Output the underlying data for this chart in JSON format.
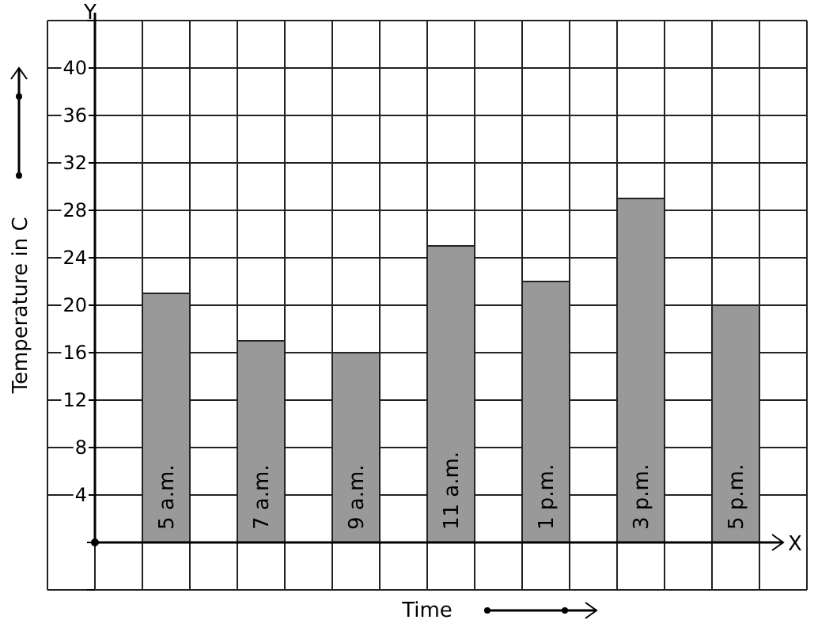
{
  "chart_data": {
    "type": "bar",
    "xlabel": "Time",
    "ylabel": "Temperature in C",
    "categories": [
      "5 a.m.",
      "7 a.m.",
      "9 a.m.",
      "11 a.m.",
      "1 p.m.",
      "3 p.m.",
      "5 p.m."
    ],
    "values": [
      21,
      17,
      16,
      25,
      22,
      29,
      20
    ],
    "color": "#999999",
    "ylim": [
      -4,
      44
    ],
    "yticks": [
      {
        "value": -4,
        "label": null
      },
      {
        "value": 0,
        "label": null
      },
      4,
      8,
      12,
      16,
      20,
      24,
      28,
      32,
      36,
      40,
      {
        "value": 44,
        "label": null
      }
    ],
    "annotations": [
      "X",
      "Y"
    ],
    "grid": true
  }
}
